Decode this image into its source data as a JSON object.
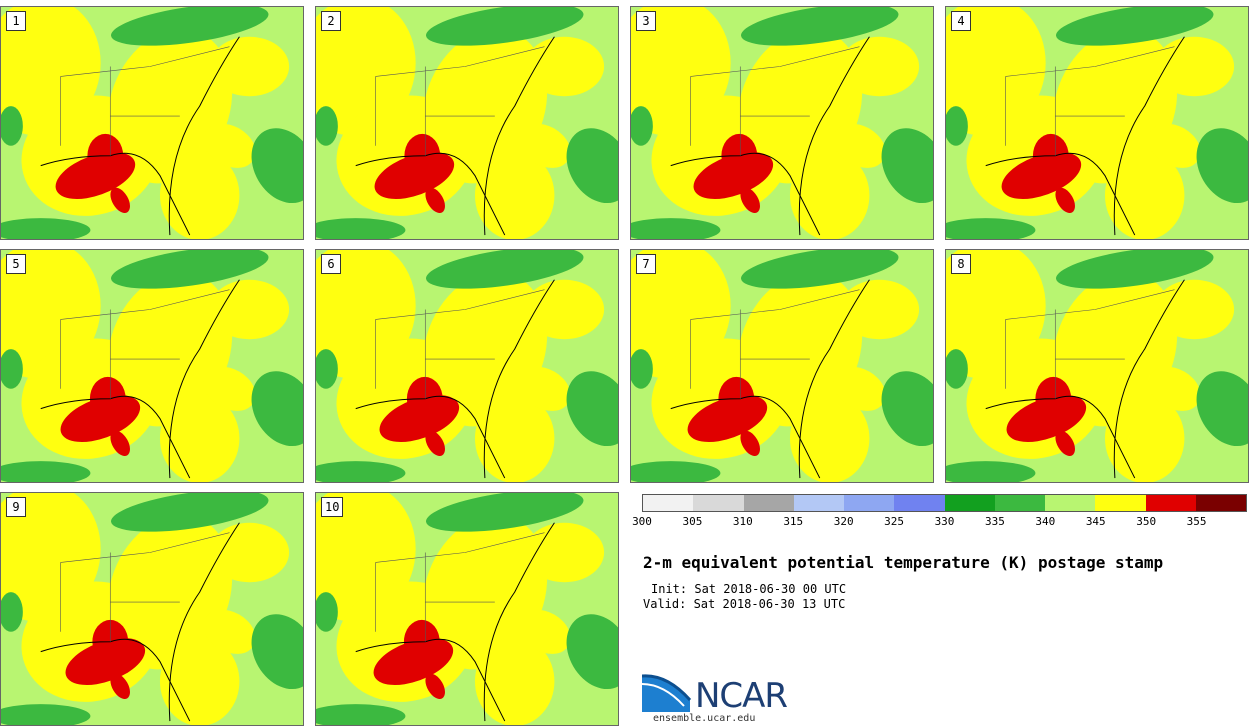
{
  "panels": [
    {
      "label": "1"
    },
    {
      "label": "2"
    },
    {
      "label": "3"
    },
    {
      "label": "4"
    },
    {
      "label": "5"
    },
    {
      "label": "6"
    },
    {
      "label": "7"
    },
    {
      "label": "8"
    },
    {
      "label": "9"
    },
    {
      "label": "10"
    }
  ],
  "colorbar": {
    "colors": [
      "#f2f2f2",
      "#d9d9d9",
      "#a6a6a6",
      "#b3c8f5",
      "#8ea7f2",
      "#7082f0",
      "#12a01f",
      "#3cb940",
      "#b8f571",
      "#ffff10",
      "#e00000",
      "#7a0000"
    ],
    "ticks": [
      "300",
      "305",
      "310",
      "315",
      "320",
      "325",
      "330",
      "335",
      "340",
      "345",
      "350",
      "355"
    ]
  },
  "title": "2-m equivalent potential temperature (K) postage stamp",
  "init": "Init: Sat 2018-06-30 00 UTC",
  "valid": "Valid: Sat 2018-06-30 13 UTC",
  "logo": {
    "text": "NCAR",
    "site": "ensemble.ucar.edu"
  },
  "map_colors": {
    "land_warm": "#ffff10",
    "land_mild": "#b8f571",
    "cool": "#3cb940",
    "hot": "#e00000"
  }
}
